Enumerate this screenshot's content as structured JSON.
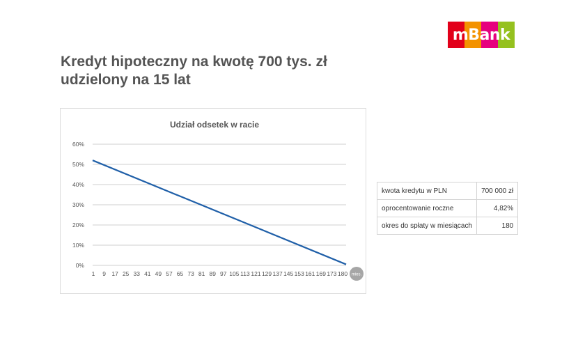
{
  "brand": {
    "logo_text": "mBank",
    "stripe_colors": [
      "#e2001a",
      "#e2001a",
      "#f39200",
      "#f39200",
      "#e6007e",
      "#e6007e",
      "#95c11f",
      "#95c11f"
    ]
  },
  "title": {
    "line1": "Kredyt hipoteczny na kwotę 700 tys. zł",
    "line2": "udzielony na 15 lat"
  },
  "chart_data": {
    "type": "line",
    "title": "Udział odsetek w racie",
    "xlabel": "mies.",
    "ylabel": "",
    "x_ticks": [
      "1",
      "9",
      "17",
      "25",
      "33",
      "41",
      "49",
      "57",
      "65",
      "73",
      "81",
      "89",
      "97",
      "105",
      "113",
      "121",
      "129",
      "137",
      "145",
      "153",
      "161",
      "169",
      "173",
      "180"
    ],
    "y_ticks": [
      "0%",
      "10%",
      "20%",
      "30%",
      "40%",
      "50%",
      "60%"
    ],
    "ylim": [
      0,
      60
    ],
    "xlim": [
      1,
      180
    ],
    "grid": true,
    "series": [
      {
        "color": "#1f5fa8",
        "x": [
          1,
          180
        ],
        "y": [
          52,
          0.5
        ]
      }
    ]
  },
  "info_table": {
    "rows": [
      {
        "label": "kwota kredytu w PLN",
        "value": "700 000 zł"
      },
      {
        "label": "oprocentowanie roczne",
        "value": "4,82%"
      },
      {
        "label": "okres do spłaty w miesiącach",
        "value": "180"
      }
    ]
  }
}
